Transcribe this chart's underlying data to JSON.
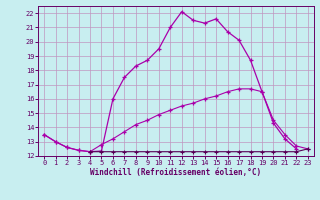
{
  "xlabel": "Windchill (Refroidissement éolien,°C)",
  "bg_color": "#c8eef0",
  "grid_color": "#c096c0",
  "xlim": [
    -0.5,
    23.5
  ],
  "ylim": [
    12,
    22.5
  ],
  "xticks": [
    0,
    1,
    2,
    3,
    4,
    5,
    6,
    7,
    8,
    9,
    10,
    11,
    12,
    13,
    14,
    15,
    16,
    17,
    18,
    19,
    20,
    21,
    22,
    23
  ],
  "yticks": [
    12,
    13,
    14,
    15,
    16,
    17,
    18,
    19,
    20,
    21,
    22
  ],
  "line1_x": [
    0,
    1,
    2,
    3,
    4,
    5,
    6,
    7,
    8,
    9,
    10,
    11,
    12,
    13,
    14,
    15,
    16,
    17,
    18,
    19,
    20,
    21,
    22
  ],
  "line1_y": [
    13.5,
    13.0,
    12.6,
    12.4,
    12.3,
    12.35,
    16.0,
    17.5,
    18.3,
    18.7,
    19.5,
    21.0,
    22.1,
    21.5,
    21.3,
    21.6,
    20.7,
    20.1,
    18.7,
    16.5,
    14.3,
    13.2,
    12.5
  ],
  "line2_x": [
    0,
    1,
    2,
    3,
    4,
    5,
    6,
    7,
    8,
    9,
    10,
    11,
    12,
    13,
    14,
    15,
    16,
    17,
    18,
    19,
    20,
    21,
    22,
    23
  ],
  "line2_y": [
    13.5,
    13.0,
    12.6,
    12.4,
    12.3,
    12.8,
    13.2,
    13.7,
    14.2,
    14.5,
    14.9,
    15.2,
    15.5,
    15.7,
    16.0,
    16.2,
    16.5,
    16.7,
    16.7,
    16.5,
    14.5,
    13.5,
    12.7,
    12.5
  ],
  "line3_x": [
    4,
    5,
    6,
    7,
    8,
    9,
    10,
    11,
    12,
    13,
    14,
    15,
    16,
    17,
    18,
    19,
    20,
    21,
    22,
    23
  ],
  "line3_y": [
    12.3,
    12.3,
    12.3,
    12.3,
    12.3,
    12.3,
    12.3,
    12.3,
    12.3,
    12.3,
    12.3,
    12.3,
    12.3,
    12.3,
    12.3,
    12.3,
    12.3,
    12.3,
    12.3,
    12.5
  ],
  "line1_color": "#aa00aa",
  "line2_color": "#aa00aa",
  "line3_color": "#550055",
  "tick_color": "#660066",
  "label_color": "#660066"
}
